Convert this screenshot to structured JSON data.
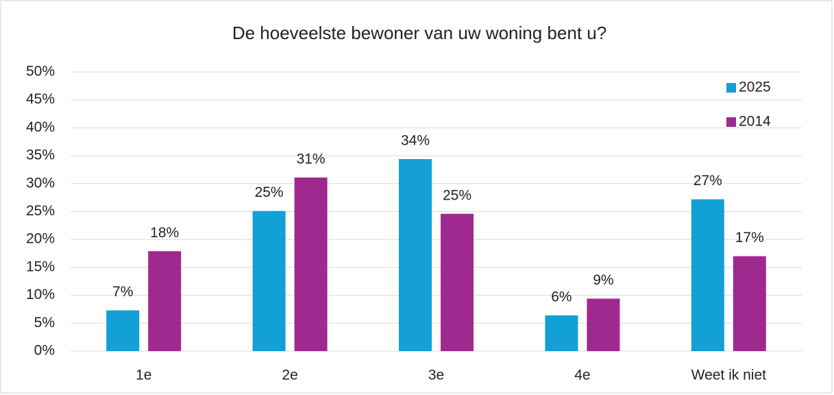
{
  "chart_data": {
    "type": "bar",
    "title": "De hoeveelste bewoner van uw woning bent u?",
    "categories": [
      "1e",
      "2e",
      "3e",
      "4e",
      "Weet ik niet"
    ],
    "series": [
      {
        "name": "2025",
        "color": "#12a0d7",
        "values": [
          7.3,
          25.1,
          34.4,
          6.4,
          27.2
        ],
        "value_labels": [
          "7%",
          "25%",
          "34%",
          "6%",
          "27%"
        ]
      },
      {
        "name": "2014",
        "color": "#a0298f",
        "values": [
          17.9,
          31.1,
          24.6,
          9.4,
          17.0
        ],
        "value_labels": [
          "18%",
          "31%",
          "25%",
          "9%",
          "17%"
        ]
      }
    ],
    "ylim": [
      0,
      50
    ],
    "yticks": [
      {
        "value": 0,
        "label": "0%"
      },
      {
        "value": 5,
        "label": "5%"
      },
      {
        "value": 10,
        "label": "10%"
      },
      {
        "value": 15,
        "label": "15%"
      },
      {
        "value": 20,
        "label": "20%"
      },
      {
        "value": 25,
        "label": "25%"
      },
      {
        "value": 30,
        "label": "30%"
      },
      {
        "value": 35,
        "label": "35%"
      },
      {
        "value": 40,
        "label": "40%"
      },
      {
        "value": 45,
        "label": "45%"
      },
      {
        "value": 50,
        "label": "50%"
      }
    ],
    "grid": true,
    "legend": "top-right"
  }
}
